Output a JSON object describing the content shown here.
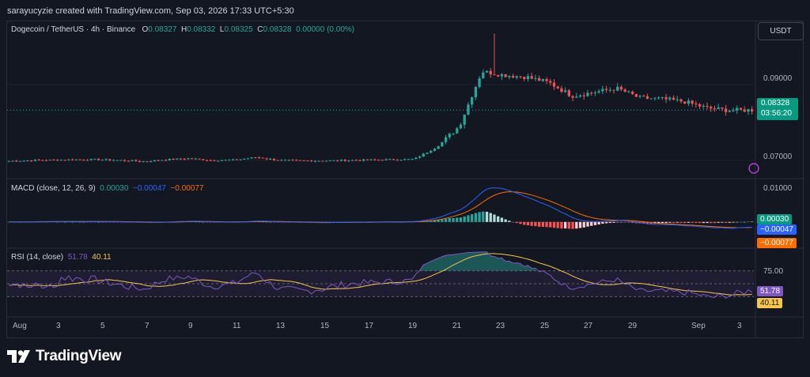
{
  "header": {
    "credit": "sarayucyzie created with TradingView.com, Sep 03, 2026 17:33 UTC+5:30"
  },
  "symbol_legend": {
    "title": "Dogecoin / TetherUS · 4h · Binance",
    "o_label": "O",
    "o": "0.08327",
    "h_label": "H",
    "h": "0.08332",
    "l_label": "L",
    "l": "0.08325",
    "c_label": "C",
    "c": "0.08328",
    "change": "0.00000 (0.00%)"
  },
  "currency_button": "USDT",
  "macd_legend": {
    "title": "MACD (close, 12, 26, 9)",
    "hist": "0.00030",
    "macd": "−0.00047",
    "signal": "−0.00077"
  },
  "rsi_legend": {
    "title": "RSI (14, close)",
    "rsi": "51.78",
    "ma": "40.11"
  },
  "price_axis": {
    "labels": [
      "0.09000",
      "0.07000"
    ]
  },
  "price_tag": {
    "price": "0.08328",
    "countdown": "03:56:20"
  },
  "macd_axis": {
    "top": "0.01000",
    "hist_tag": "0.00030",
    "macd_tag": "−0.00047",
    "signal_tag": "−0.00077"
  },
  "rsi_axis": {
    "upper": "75.00",
    "rsi_tag": "51.78",
    "ma_tag": "40.11"
  },
  "time_axis": {
    "labels": [
      "Aug",
      "3",
      "5",
      "7",
      "9",
      "11",
      "13",
      "15",
      "17",
      "19",
      "21",
      "23",
      "25",
      "27",
      "29",
      "Sep",
      "3"
    ]
  },
  "footer": {
    "brand": "TradingView"
  },
  "colors": {
    "up": "#26a69a",
    "down": "#ef5350",
    "macd": "#2962ff",
    "signal": "#ff6d00",
    "rsi": "#7e57c2",
    "rsi_ma": "#f7c548",
    "background": "#131722"
  },
  "chart_data": [
    {
      "type": "candlestick",
      "title": "Dogecoin / TetherUS · 4h · Binance",
      "x_range": [
        "Aug 1, 2026",
        "Sep 3, 2026"
      ],
      "ylim": [
        0.066,
        0.104
      ],
      "close_path": [
        [
          "Aug 1",
          0.0698
        ],
        [
          "Aug 2",
          0.07
        ],
        [
          "Aug 3",
          0.0701
        ],
        [
          "Aug 4",
          0.0702
        ],
        [
          "Aug 5",
          0.0702
        ],
        [
          "Aug 6",
          0.07
        ],
        [
          "Aug 7",
          0.0697
        ],
        [
          "Aug 8",
          0.0702
        ],
        [
          "Aug 9",
          0.0705
        ],
        [
          "Aug 10",
          0.07
        ],
        [
          "Aug 11",
          0.0701
        ],
        [
          "Aug 12",
          0.0708
        ],
        [
          "Aug 13",
          0.07
        ],
        [
          "Aug 14",
          0.0699
        ],
        [
          "Aug 15",
          0.0699
        ],
        [
          "Aug 16",
          0.07
        ],
        [
          "Aug 17",
          0.0701
        ],
        [
          "Aug 18",
          0.0702
        ],
        [
          "Aug 19",
          0.0703
        ],
        [
          "Aug 20",
          0.0735
        ],
        [
          "Aug 21",
          0.079
        ],
        [
          "Aug 22",
          0.0935
        ],
        [
          "Aug 23",
          0.0925
        ],
        [
          "Aug 24",
          0.092
        ],
        [
          "Aug 25",
          0.0905
        ],
        [
          "Aug 26",
          0.087
        ],
        [
          "Aug 27",
          0.088
        ],
        [
          "Aug 28",
          0.089
        ],
        [
          "Aug 29",
          0.0865
        ],
        [
          "Aug 30",
          0.0862
        ],
        [
          "Aug 31",
          0.0855
        ],
        [
          "Sep 1",
          0.0838
        ],
        [
          "Sep 2",
          0.0832
        ],
        [
          "Sep 3",
          0.0833
        ]
      ]
    },
    {
      "type": "line",
      "title": "MACD (close, 12, 26, 9)",
      "series": [
        {
          "name": "MACD",
          "last": -0.00047
        },
        {
          "name": "Signal",
          "last": -0.00077
        },
        {
          "name": "Histogram",
          "last": 0.0003
        }
      ]
    },
    {
      "type": "line",
      "title": "RSI (14, close)",
      "ylim": [
        0,
        100
      ],
      "bands": [
        30,
        70
      ],
      "series": [
        {
          "name": "RSI",
          "last": 51.78,
          "peak": 88
        },
        {
          "name": "RSI-based MA",
          "last": 40.11
        }
      ]
    }
  ]
}
